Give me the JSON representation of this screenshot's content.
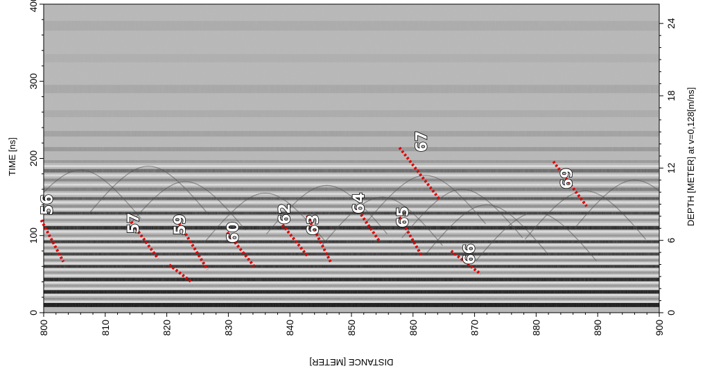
{
  "chart_data": {
    "type": "radargram",
    "xlabel": "DISTANCE [METER]",
    "ylabel_left": "TIME [ns]",
    "ylabel_right": "DEPTH [METER] at v=0,128[m/ns]",
    "xlim": [
      800,
      900
    ],
    "ylim_time": [
      0,
      400
    ],
    "ylim_depth": [
      0,
      25.6
    ],
    "x_ticks": [
      800,
      810,
      820,
      830,
      840,
      850,
      860,
      870,
      880,
      890,
      900
    ],
    "time_ticks": [
      0,
      100,
      200,
      300,
      400
    ],
    "depth_ticks": [
      0,
      6,
      12,
      18,
      24
    ],
    "marker_color": "#e00000",
    "markers": [
      {
        "label": "56",
        "x1": 799.6,
        "t1": 120,
        "x2": 803.2,
        "t2": 66,
        "lx": 801.4,
        "lt": 140
      },
      {
        "label": "57",
        "x1": 814.2,
        "t1": 118,
        "x2": 818.6,
        "t2": 70,
        "lx": 815.4,
        "lt": 116
      },
      {
        "label": "59",
        "x1": 822.0,
        "t1": 116,
        "x2": 826.6,
        "t2": 56,
        "lx": 823.0,
        "lt": 114
      },
      {
        "label": "59",
        "x1": 820.4,
        "t1": 62,
        "x2": 824.0,
        "t2": 40,
        "lx": null,
        "lt": null
      },
      {
        "label": "60",
        "x1": 829.8,
        "t1": 104,
        "x2": 834.2,
        "t2": 60,
        "lx": 831.6,
        "lt": 104
      },
      {
        "label": "62",
        "x1": 838.8,
        "t1": 114,
        "x2": 843.0,
        "t2": 72,
        "lx": 840.0,
        "lt": 128
      },
      {
        "label": "63",
        "x1": 842.8,
        "t1": 126,
        "x2": 846.6,
        "t2": 66,
        "lx": 844.6,
        "lt": 114
      },
      {
        "label": "64",
        "x1": 850.8,
        "t1": 136,
        "x2": 854.6,
        "t2": 92,
        "lx": 852.0,
        "lt": 142
      },
      {
        "label": "65",
        "x1": 857.8,
        "t1": 124,
        "x2": 861.4,
        "t2": 74,
        "lx": 859.2,
        "lt": 124
      },
      {
        "label": "66",
        "x1": 866.2,
        "t1": 80,
        "x2": 871.0,
        "t2": 50,
        "lx": 870.0,
        "lt": 76
      },
      {
        "label": "67",
        "x1": 857.8,
        "t1": 214,
        "x2": 864.4,
        "t2": 146,
        "lx": 862.2,
        "lt": 222
      },
      {
        "label": "69",
        "x1": 882.8,
        "t1": 196,
        "x2": 888.2,
        "t2": 138,
        "lx": 885.8,
        "lt": 174
      }
    ]
  }
}
